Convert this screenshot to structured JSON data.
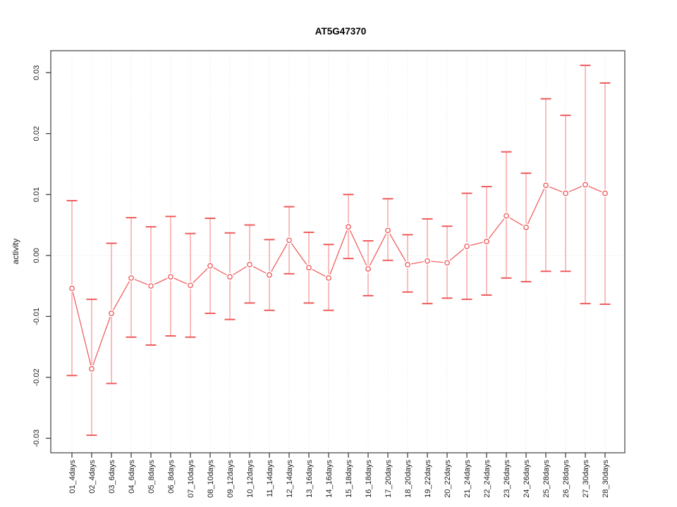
{
  "chart_data": {
    "type": "scatter",
    "title": "AT5G47370",
    "xlabel": "",
    "ylabel": "activity",
    "ylim": [
      -0.031,
      0.0325
    ],
    "grid": "vertical-dotted-per-category, horizontal-dotted-at-zero",
    "legend": "none",
    "y_ticks": [
      -0.03,
      -0.02,
      -0.01,
      0.0,
      0.01,
      0.02,
      0.03
    ],
    "y_tick_labels": [
      "-0.03",
      "-0.02",
      "-0.01",
      "0.00",
      "0.01",
      "0.02",
      "0.03"
    ],
    "categories": [
      "01_4days",
      "02_4days",
      "03_6days",
      "04_6days",
      "05_8days",
      "06_8days",
      "07_10days",
      "08_10days",
      "09_12days",
      "10_12days",
      "11_14days",
      "12_14days",
      "13_16days",
      "14_16days",
      "15_18days",
      "16_18days",
      "17_20days",
      "18_20days",
      "19_22days",
      "20_22days",
      "21_24days",
      "22_24days",
      "23_26days",
      "24_26days",
      "25_28days",
      "26_28days",
      "27_30days",
      "28_30days"
    ],
    "values": [
      -0.0054,
      -0.0186,
      -0.0095,
      -0.0037,
      -0.005,
      -0.0035,
      -0.0049,
      -0.0017,
      -0.0035,
      -0.0015,
      -0.0032,
      0.0025,
      -0.002,
      -0.0037,
      0.0047,
      -0.0022,
      0.0041,
      -0.0015,
      -0.0009,
      -0.0012,
      0.0015,
      0.0023,
      0.0065,
      0.0046,
      0.0115,
      0.0102,
      0.0116,
      0.0102
    ],
    "upper": [
      0.009,
      -0.0072,
      0.002,
      0.0062,
      0.0047,
      0.0064,
      0.0036,
      0.0061,
      0.0037,
      0.005,
      0.0026,
      0.008,
      0.0038,
      0.0018,
      0.01,
      0.0024,
      0.0093,
      0.0034,
      0.006,
      0.0048,
      0.0102,
      0.0113,
      0.017,
      0.0135,
      0.0257,
      0.023,
      0.0312,
      0.0283
    ],
    "lower": [
      -0.0197,
      -0.0295,
      -0.021,
      -0.0134,
      -0.0147,
      -0.0132,
      -0.0134,
      -0.0095,
      -0.0105,
      -0.0078,
      -0.009,
      -0.003,
      -0.0078,
      -0.009,
      -0.0005,
      -0.0066,
      -0.0008,
      -0.006,
      -0.0079,
      -0.007,
      -0.0072,
      -0.0065,
      -0.0037,
      -0.0043,
      -0.0026,
      -0.0026,
      -0.0079,
      -0.008
    ],
    "colors": {
      "point_line": "#ee5454",
      "error_bar": "#f58585",
      "grid": "#e0e0e0",
      "zero_line": "#dcdcdc",
      "axis_box": "#4d4d4d",
      "tick": "#333333",
      "tick_text": "#1f1f1f",
      "title_text": "#000000"
    }
  }
}
